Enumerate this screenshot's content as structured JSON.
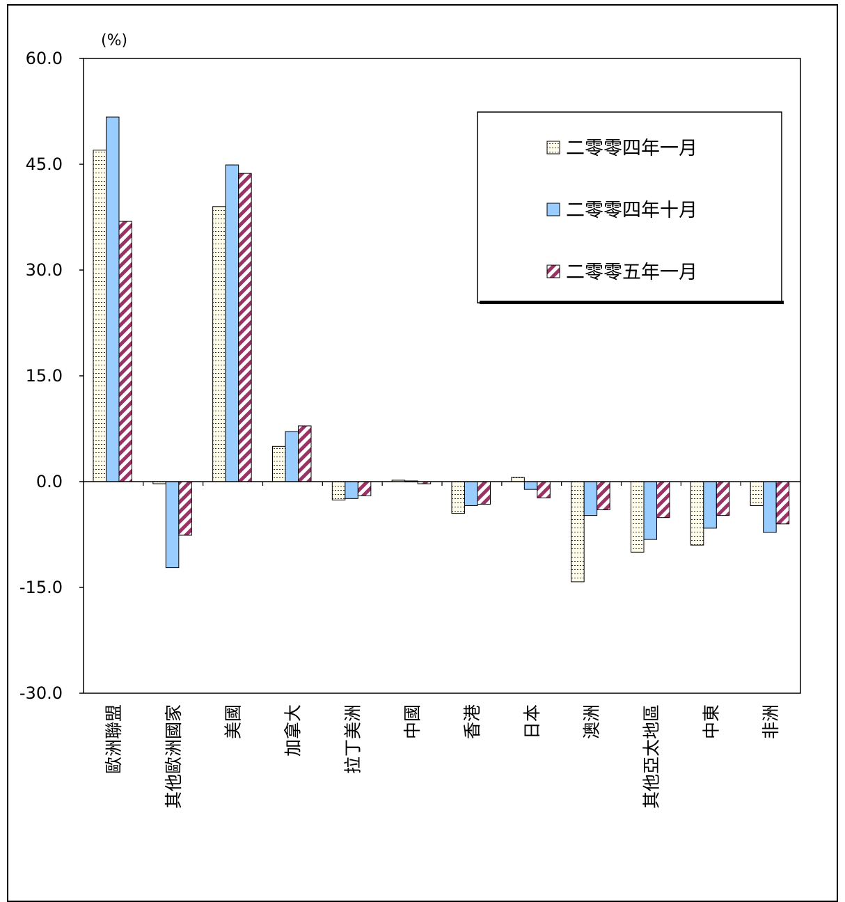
{
  "unit_label": "(%)",
  "chart_data": {
    "type": "bar",
    "ylim": [
      -30,
      60
    ],
    "yticks": [
      "60.0",
      "45.0",
      "30.0",
      "15.0",
      "0.0",
      "-15.0",
      "-30.0"
    ],
    "ytick_values": [
      60,
      45,
      30,
      15,
      0,
      -15,
      -30
    ],
    "grid": false,
    "legend_position": "top-right",
    "categories": [
      "歐洲聯盟",
      "其他歐洲國家",
      "美國",
      "加拿大",
      "拉丁美洲",
      "中國",
      "香港",
      "日本",
      "澳洲",
      "其他亞太地區",
      "中東",
      "非洲"
    ],
    "series": [
      {
        "name": "二零零四年一月",
        "color": "#fffde8",
        "pattern": "dots",
        "values": [
          47.0,
          -0.3,
          39.0,
          5.0,
          -2.6,
          0.2,
          -4.5,
          0.6,
          -14.2,
          -10.0,
          -9.0,
          -3.4
        ]
      },
      {
        "name": "二零零四年十月",
        "color": "#99ccff",
        "pattern": "solid",
        "values": [
          51.7,
          -12.2,
          44.9,
          7.1,
          -2.4,
          0.1,
          -3.4,
          -1.1,
          -4.8,
          -8.2,
          -6.6,
          -7.2
        ]
      },
      {
        "name": "二零零五年一月",
        "color": "#993366",
        "pattern": "hatch",
        "values": [
          36.9,
          -7.6,
          43.7,
          7.9,
          -2.0,
          -0.3,
          -3.2,
          -2.3,
          -4.0,
          -5.1,
          -4.8,
          -6.0
        ]
      }
    ]
  }
}
